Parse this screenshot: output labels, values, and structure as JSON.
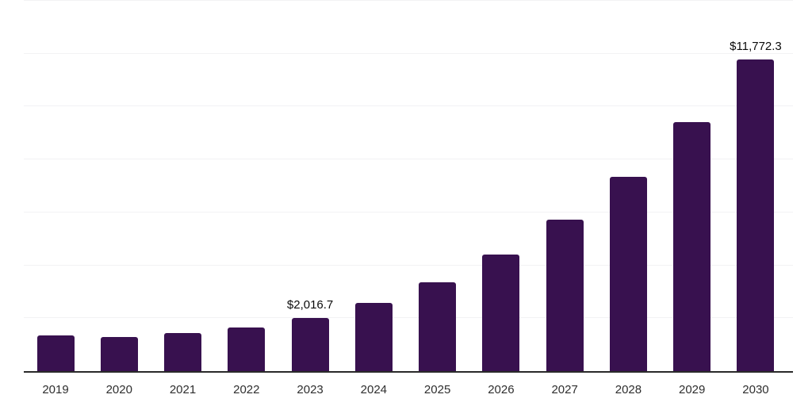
{
  "chart_data": {
    "type": "bar",
    "title": "",
    "xlabel": "",
    "ylabel": "",
    "categories": [
      "2019",
      "2020",
      "2021",
      "2022",
      "2023",
      "2024",
      "2025",
      "2026",
      "2027",
      "2028",
      "2029",
      "2030"
    ],
    "values": [
      1360,
      1290,
      1440,
      1660,
      2016.7,
      2580,
      3350,
      4420,
      5720,
      7360,
      9420,
      11772.3
    ],
    "data_labels": [
      "",
      "",
      "",
      "",
      "$2,016.7",
      "",
      "",
      "",
      "",
      "",
      "",
      "$11,772.3"
    ],
    "ylim": [
      0,
      14000
    ],
    "gridline_step": 2000,
    "grid": "horizontal-only",
    "legend_position": "none",
    "colors": {
      "bar": "#38114F",
      "axis_line": "#2a2a2a",
      "gridline": "#f2f2f4",
      "value_label_text": "#0b0b0b",
      "tick_label_text": "#2e2e2e",
      "background": "#ffffff"
    }
  }
}
